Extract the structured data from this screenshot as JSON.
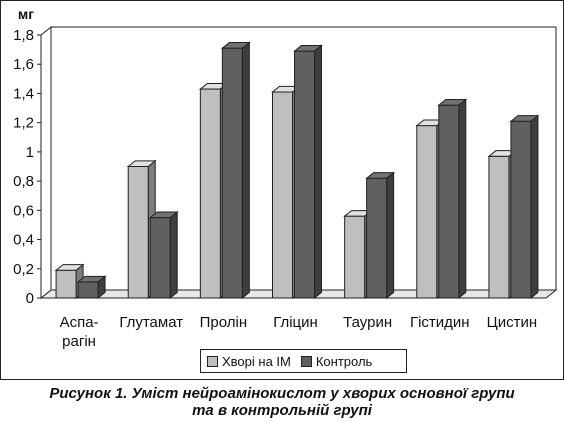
{
  "chart_data": {
    "type": "bar",
    "unit_label": "мг",
    "categories": [
      [
        "Аспа-",
        "рагін"
      ],
      [
        "Глутамат"
      ],
      [
        "Пролін"
      ],
      [
        "Гліцин"
      ],
      [
        "Таурин"
      ],
      [
        "Гістидин"
      ],
      [
        "Цистин"
      ]
    ],
    "series": [
      {
        "name": "Хворі на ІМ",
        "color": "#bfbfbf",
        "values": [
          0.19,
          0.9,
          1.43,
          1.41,
          0.56,
          1.18,
          0.97
        ]
      },
      {
        "name": "Контроль",
        "color": "#606060",
        "values": [
          0.11,
          0.55,
          1.71,
          1.69,
          0.82,
          1.32,
          1.21
        ]
      }
    ],
    "ylim": [
      0,
      1.8
    ],
    "yticks": [
      "0",
      "0,2",
      "0,4",
      "0,6",
      "0,8",
      "1",
      "1,2",
      "1,4",
      "1,6",
      "1,8"
    ],
    "legend_position": "bottom",
    "grid": false
  },
  "caption": {
    "line1": "Рисунок 1. Уміст нейроамінокислот у хворих основної групи",
    "line2": "та в контрольній групі"
  }
}
